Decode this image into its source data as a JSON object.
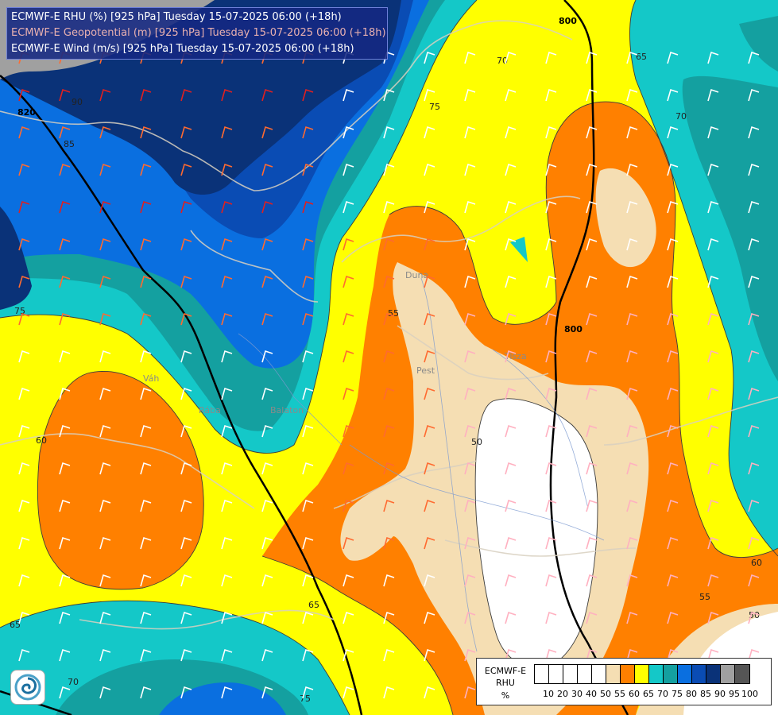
{
  "header": {
    "line1": "ECMWF-E RHU (%) [925 hPa] Tuesday 15-07-2025 06:00 (+18h)",
    "line2": "ECMWF-E Geopotential (m) [925 hPa] Tuesday 15-07-2025 06:00 (+18h)",
    "line3": "ECMWF-E Wind (m/s) [925 hPa] Tuesday 15-07-2025 06:00 (+18h)"
  },
  "legend": {
    "title_line1": "ECMWF-E",
    "title_line2": "RHU",
    "unit": "%",
    "ticks": [
      "10",
      "20",
      "30",
      "40",
      "50",
      "55",
      "60",
      "65",
      "70",
      "75",
      "80",
      "85",
      "90",
      "95",
      "100"
    ],
    "colors": [
      "#ffffff",
      "#ffffff",
      "#ffffff",
      "#ffffff",
      "#ffffff",
      "#f5deb3",
      "#ff8000",
      "#ffff00",
      "#14c8c8",
      "#14a0a0",
      "#0a6fe0",
      "#0a4cb4",
      "#0a3278",
      "#a0a0a0",
      "#555555"
    ]
  },
  "contour_labels": {
    "rhu": [
      "90",
      "85",
      "75",
      "70",
      "65",
      "70",
      "55",
      "50",
      "60",
      "65",
      "60",
      "55",
      "50",
      "70",
      "75",
      "75",
      "65"
    ],
    "geopotential": [
      "820",
      "800",
      "800"
    ]
  },
  "place_labels": {
    "pest": "Pest",
    "river_tisza": "Tisza",
    "river_duna": "Duna",
    "river_vah": "Váh",
    "river_rába": "Rába",
    "river_balaton": "Balaton"
  },
  "colors": {
    "rhu_50": "#ffffff",
    "rhu_55": "#f5deb3",
    "rhu_60": "#ff8000",
    "rhu_65": "#ffff00",
    "rhu_70": "#14c8c8",
    "rhu_75": "#14a0a0",
    "rhu_80": "#0a6fe0",
    "rhu_85": "#0a4cb4",
    "rhu_90": "#0a3278",
    "rhu_95": "#a0a0a0"
  },
  "logo_icon": "ecmwf-swirl-icon"
}
